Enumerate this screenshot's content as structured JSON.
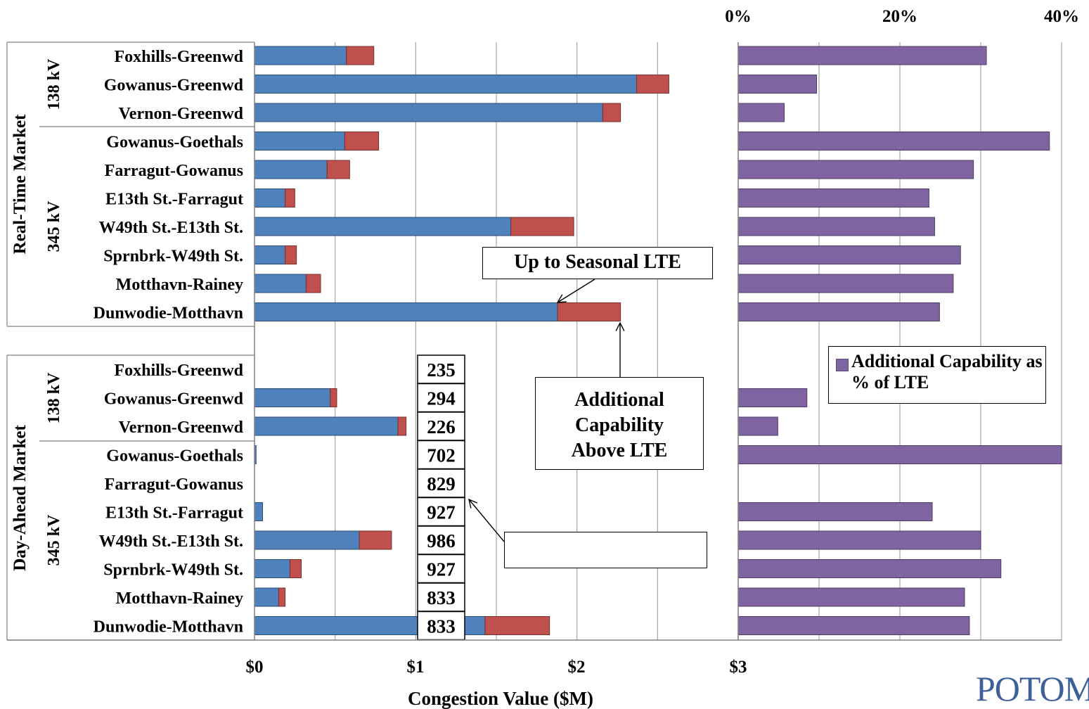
{
  "chart_data": {
    "type": "bar",
    "title": "",
    "market_labels": [
      "Real-Time Market",
      "Day-Ahead Market"
    ],
    "voltage_labels": [
      "138 kV",
      "345 kV"
    ],
    "xlabel": "Congestion Value ($M)",
    "x_ticks": [
      "$0",
      "$1",
      "$2",
      "$3"
    ],
    "xlim": [
      0,
      3
    ],
    "pct_ticks": [
      "0%",
      "20%",
      "40%"
    ],
    "pct_lim": [
      0,
      0.4
    ],
    "groups": [
      {
        "market": "Real-Time Market",
        "rows": [
          {
            "name": "Foxhills-Greenwd",
            "voltage": "138 kV",
            "blue": 0.57,
            "red": 0.17,
            "pct": 0.307
          },
          {
            "name": "Gowanus-Greenwd",
            "voltage": "138 kV",
            "blue": 2.37,
            "red": 0.2,
            "pct": 0.097
          },
          {
            "name": "Vernon-Greenwd",
            "voltage": "138 kV",
            "blue": 2.16,
            "red": 0.11,
            "pct": 0.057
          },
          {
            "name": "Gowanus-Goethals",
            "voltage": "345 kV",
            "blue": 0.56,
            "red": 0.21,
            "pct": 0.385
          },
          {
            "name": "Farragut-Gowanus",
            "voltage": "345 kV",
            "blue": 0.45,
            "red": 0.14,
            "pct": 0.291
          },
          {
            "name": "E13th St.-Farragut",
            "voltage": "345 kV",
            "blue": 0.19,
            "red": 0.06,
            "pct": 0.236
          },
          {
            "name": "W49th St.-E13th St.",
            "voltage": "345 kV",
            "blue": 1.59,
            "red": 0.39,
            "pct": 0.243
          },
          {
            "name": "Sprnbrk-W49th St.",
            "voltage": "345 kV",
            "blue": 0.19,
            "red": 0.07,
            "pct": 0.275
          },
          {
            "name": "Motthavn-Rainey",
            "voltage": "345 kV",
            "blue": 0.32,
            "red": 0.09,
            "pct": 0.266
          },
          {
            "name": "Dunwodie-Motthavn",
            "voltage": "345 kV",
            "blue": 1.88,
            "red": 0.39,
            "pct": 0.249
          }
        ]
      },
      {
        "market": "Day-Ahead Market",
        "rows": [
          {
            "name": "Foxhills-Greenwd",
            "voltage": "138 kV",
            "blue": 0,
            "red": 0,
            "pct": 0,
            "count": "235"
          },
          {
            "name": "Gowanus-Greenwd",
            "voltage": "138 kV",
            "blue": 0.47,
            "red": 0.04,
            "pct": 0.085,
            "count": "294"
          },
          {
            "name": "Vernon-Greenwd",
            "voltage": "138 kV",
            "blue": 0.89,
            "red": 0.05,
            "pct": 0.049,
            "count": "226"
          },
          {
            "name": "Gowanus-Goethals",
            "voltage": "345 kV",
            "blue": 0.01,
            "red": 0,
            "pct": 0.4,
            "count": "702"
          },
          {
            "name": "Farragut-Gowanus",
            "voltage": "345 kV",
            "blue": 0,
            "red": 0,
            "pct": 0,
            "count": "829"
          },
          {
            "name": "E13th St.-Farragut",
            "voltage": "345 kV",
            "blue": 0.05,
            "red": 0,
            "pct": 0.24,
            "count": "927"
          },
          {
            "name": "W49th St.-E13th St.",
            "voltage": "345 kV",
            "blue": 0.65,
            "red": 0.2,
            "pct": 0.3,
            "count": "986"
          },
          {
            "name": "Sprnbrk-W49th St.",
            "voltage": "345 kV",
            "blue": 0.22,
            "red": 0.07,
            "pct": 0.325,
            "count": "927"
          },
          {
            "name": "Motthavn-Rainey",
            "voltage": "345 kV",
            "blue": 0.15,
            "red": 0.04,
            "pct": 0.28,
            "count": "833"
          },
          {
            "name": "Dunwodie-Motthavn",
            "voltage": "345 kV",
            "blue": 1.43,
            "red": 0.4,
            "pct": 0.286,
            "count": "833"
          }
        ]
      }
    ],
    "colors": {
      "blue": "#4f81bd",
      "red": "#c0504d",
      "purple": "#8064a2",
      "grid": "#a6a6a6"
    },
    "legend": {
      "label": "Additional Capability as % of LTE",
      "position": "right-middle"
    },
    "annotations": {
      "seasonal": "Up to Seasonal  LTE",
      "above_lte": "Additional Capability Above LTE",
      "blank": ""
    }
  },
  "logo": "POTOMAC"
}
